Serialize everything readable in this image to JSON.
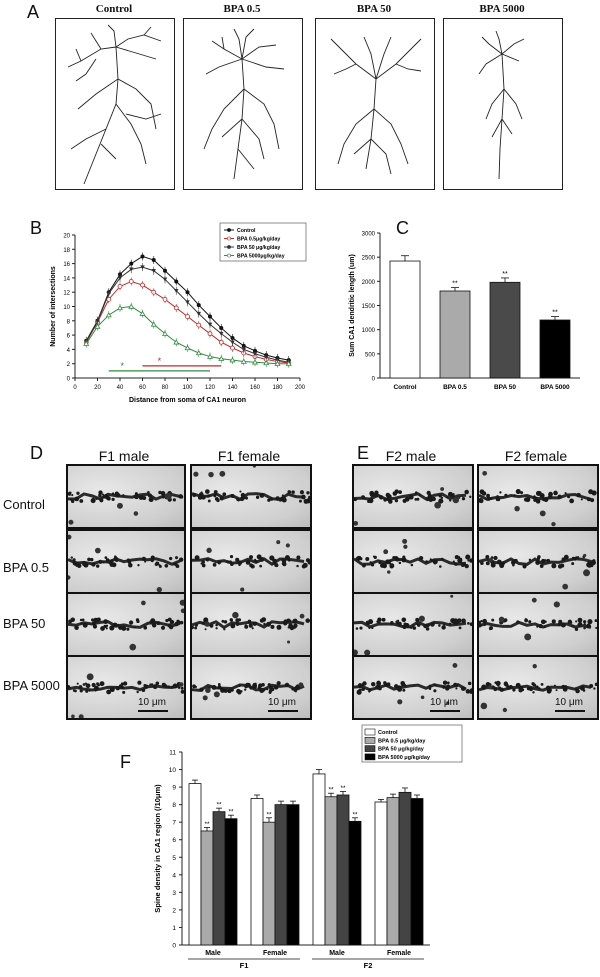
{
  "panel_labels": {
    "a": "A",
    "b": "B",
    "c": "C",
    "d": "D",
    "e": "E",
    "f": "F"
  },
  "panel_a": {
    "titles": [
      "Control",
      "BPA 0.5",
      "BPA 50",
      "BPA 5000"
    ]
  },
  "chart_data": [
    {
      "id": "B",
      "type": "line",
      "xlabel": "Distance from soma of CA1 neuron",
      "ylabel": "Number of intersections",
      "xlim": [
        0,
        200
      ],
      "ylim": [
        0,
        20
      ],
      "xticks": [
        0,
        20,
        40,
        60,
        80,
        100,
        120,
        140,
        160,
        180,
        200
      ],
      "yticks": [
        0,
        2,
        4,
        6,
        8,
        10,
        12,
        14,
        16,
        18,
        20
      ],
      "x": [
        10,
        20,
        30,
        40,
        50,
        60,
        70,
        80,
        90,
        100,
        110,
        120,
        130,
        140,
        150,
        160,
        170,
        180,
        190
      ],
      "series": [
        {
          "name": "Control",
          "color": "#111111",
          "values": [
            5.2,
            8.0,
            12.0,
            14.5,
            16.0,
            17.0,
            16.5,
            15.0,
            13.5,
            12.0,
            10.2,
            8.6,
            7.0,
            5.6,
            4.5,
            3.8,
            3.2,
            2.8,
            2.5
          ]
        },
        {
          "name": "BPA 0.5μg/kg/day",
          "color": "#c0282a",
          "values": [
            5.0,
            7.8,
            11.0,
            12.8,
            13.5,
            13.0,
            12.0,
            11.0,
            9.8,
            8.6,
            7.4,
            6.2,
            5.0,
            4.2,
            3.5,
            3.0,
            2.6,
            2.3,
            2.1
          ]
        },
        {
          "name": "BPA 50 μg/kg/day",
          "color": "#333333",
          "values": [
            5.1,
            7.9,
            11.8,
            14.0,
            15.2,
            15.5,
            15.0,
            13.8,
            12.2,
            10.6,
            9.0,
            7.5,
            6.2,
            5.0,
            4.0,
            3.4,
            2.9,
            2.5,
            2.2
          ]
        },
        {
          "name": "BPA 5000μg/kg/day",
          "color": "#2e8b3e",
          "values": [
            4.8,
            7.2,
            8.8,
            9.8,
            10.0,
            9.0,
            7.5,
            6.2,
            5.0,
            4.2,
            3.5,
            3.0,
            2.7,
            2.5,
            2.3,
            2.2,
            2.1,
            2.0,
            2.0
          ]
        }
      ],
      "annotations": [
        {
          "text": "*",
          "color": "#2e8b3e"
        },
        {
          "text": "*",
          "color": "#c0282a"
        }
      ]
    },
    {
      "id": "C",
      "type": "bar",
      "ylabel": "Sum CA1 dendritic length (um)",
      "ylim": [
        0,
        3000
      ],
      "yticks": [
        0,
        500,
        1000,
        1500,
        2000,
        2500,
        3000
      ],
      "categories": [
        "Control",
        "BPA 0.5",
        "BPA 50",
        "BPA 5000"
      ],
      "values": [
        2420,
        1800,
        1980,
        1200
      ],
      "errors": [
        110,
        70,
        90,
        70
      ],
      "fills": [
        "#ffffff",
        "#aaaaaa",
        "#4a4a4a",
        "#000000"
      ],
      "sig": [
        "",
        "**",
        "**",
        "**"
      ]
    },
    {
      "id": "F",
      "type": "bar",
      "ylabel": "Spine density in CA1 region (/10μm)",
      "ylim": [
        0,
        11
      ],
      "yticks": [
        0,
        1,
        2,
        3,
        4,
        5,
        6,
        7,
        8,
        9,
        10,
        11
      ],
      "categories": [
        "Male",
        "Female",
        "Male",
        "Female"
      ],
      "group_labels": [
        "F1",
        "F2"
      ],
      "series": [
        {
          "name": "Control",
          "fill": "#ffffff",
          "values": [
            9.2,
            8.35,
            9.75,
            8.15
          ],
          "errors": [
            0.2,
            0.2,
            0.25,
            0.15
          ],
          "sig": [
            "",
            "",
            "",
            ""
          ]
        },
        {
          "name": "BPA 0.5 μg/kg/day",
          "fill": "#aaaaaa",
          "values": [
            6.5,
            7.0,
            8.45,
            8.4
          ],
          "errors": [
            0.2,
            0.25,
            0.2,
            0.2
          ],
          "sig": [
            "**",
            "**",
            "**",
            ""
          ]
        },
        {
          "name": "BPA 50 μg/kg/day",
          "fill": "#444444",
          "values": [
            7.6,
            8.0,
            8.55,
            8.7
          ],
          "errors": [
            0.2,
            0.2,
            0.2,
            0.25
          ],
          "sig": [
            "**",
            "",
            "**",
            ""
          ]
        },
        {
          "name": "BPA 5000 μg/kg/day",
          "fill": "#000000",
          "values": [
            7.2,
            8.0,
            7.05,
            8.35
          ],
          "errors": [
            0.2,
            0.2,
            0.2,
            0.2
          ],
          "sig": [
            "**",
            "",
            "**",
            ""
          ]
        }
      ]
    }
  ],
  "panel_d": {
    "cols": [
      "F1 male",
      "F1 female"
    ],
    "rows": [
      "Control",
      "BPA 0.5",
      "BPA 50",
      "BPA 5000"
    ],
    "scale": "10 μm"
  },
  "panel_e": {
    "cols": [
      "F2 male",
      "F2 female"
    ],
    "scale": "10 μm"
  }
}
